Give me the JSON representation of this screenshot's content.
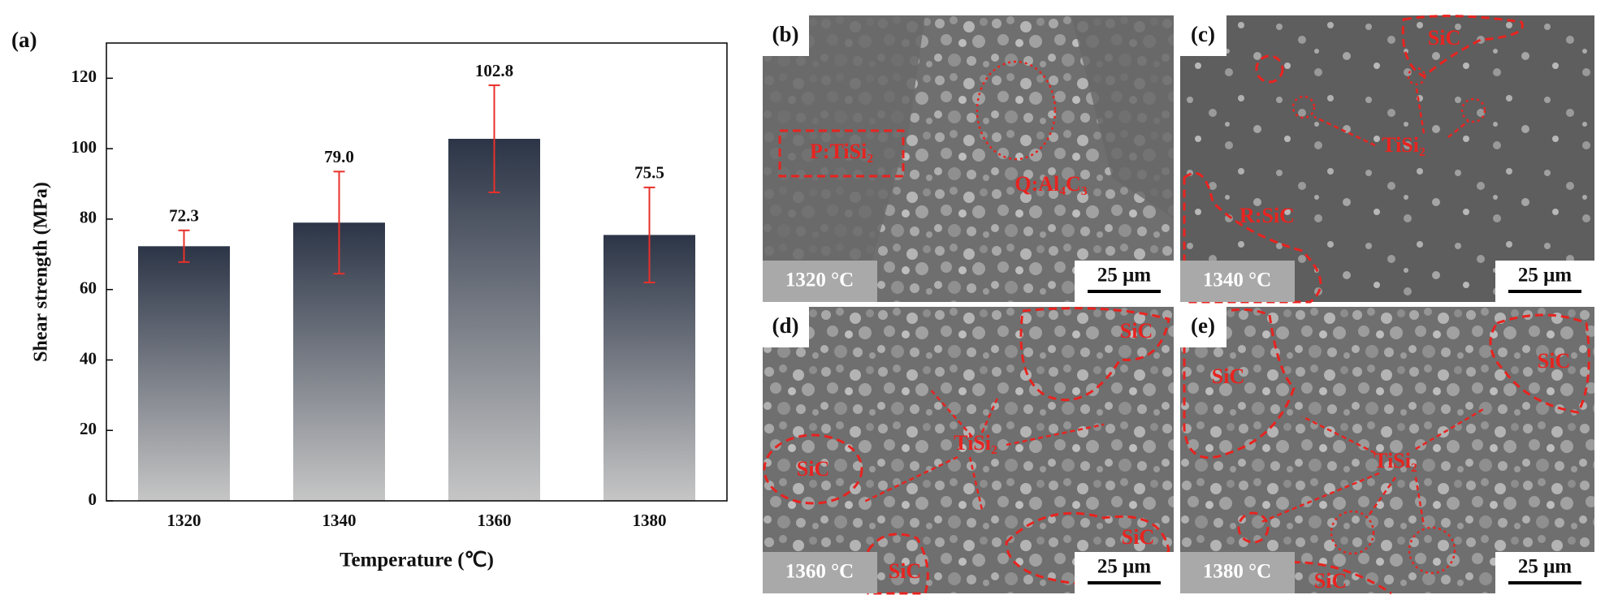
{
  "chart_data": {
    "type": "bar",
    "panel_label": "(a)",
    "x_label": "Temperature (℃)",
    "y_label": "Shear strength (MPa)",
    "categories": [
      "1320",
      "1340",
      "1360",
      "1380"
    ],
    "values": [
      72.3,
      79.0,
      102.8,
      75.5
    ],
    "value_labels": [
      "72.3",
      "79.0",
      "102.8",
      "75.5"
    ],
    "errors": [
      4.5,
      14.5,
      15.2,
      13.5
    ],
    "colors": [
      "#2c3547",
      "#c6c6c6"
    ],
    "error_color": "#e8302a",
    "ylim": [
      0,
      130
    ],
    "yticks": [
      0,
      20,
      40,
      60,
      80,
      100,
      120
    ],
    "grid": false
  },
  "panels": [
    {
      "label": "(b)",
      "temperature": "1320 °C",
      "scale": "25 μm",
      "annotations": [
        "P:TiSi₂",
        "Q:Al₄C₃"
      ]
    },
    {
      "label": "(c)",
      "temperature": "1340 °C",
      "scale": "25 μm",
      "annotations": [
        "SiC",
        "TiSi₂",
        "R:SiC"
      ]
    },
    {
      "label": "(d)",
      "temperature": "1360 °C",
      "scale": "25 μm",
      "annotations": [
        "SiC",
        "TiSi₂",
        "SiC",
        "SiC",
        "SiC"
      ]
    },
    {
      "label": "(e)",
      "temperature": "1380 °C",
      "scale": "25 μm",
      "annotations": [
        "SiC",
        "SiC",
        "TiSi₂",
        "SiC"
      ]
    }
  ]
}
